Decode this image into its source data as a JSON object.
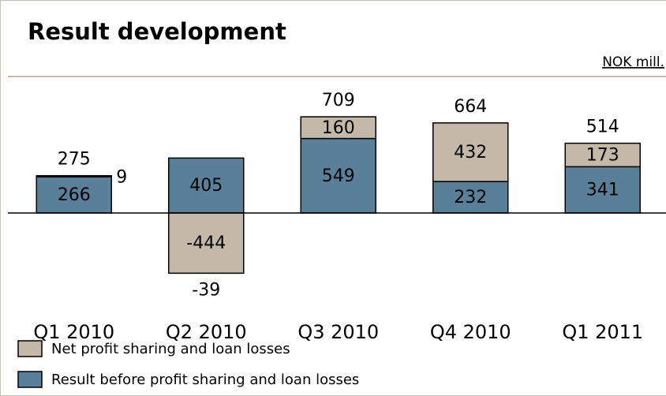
{
  "chart_data": {
    "type": "bar",
    "stacked": true,
    "title": "Result development",
    "unit": "NOK mill.",
    "categories": [
      "Q1 2010",
      "Q2 2010",
      "Q3 2010",
      "Q4 2010",
      "Q1 2011"
    ],
    "series": [
      {
        "name": "Result before profit sharing and loan losses",
        "color": "#5a7f99",
        "values": [
          266,
          405,
          549,
          232,
          341
        ]
      },
      {
        "name": "Net profit sharing and loan losses",
        "color": "#c4b8a8",
        "values": [
          9,
          -444,
          160,
          432,
          173
        ]
      }
    ],
    "totals": [
      275,
      -39,
      709,
      664,
      514
    ]
  }
}
